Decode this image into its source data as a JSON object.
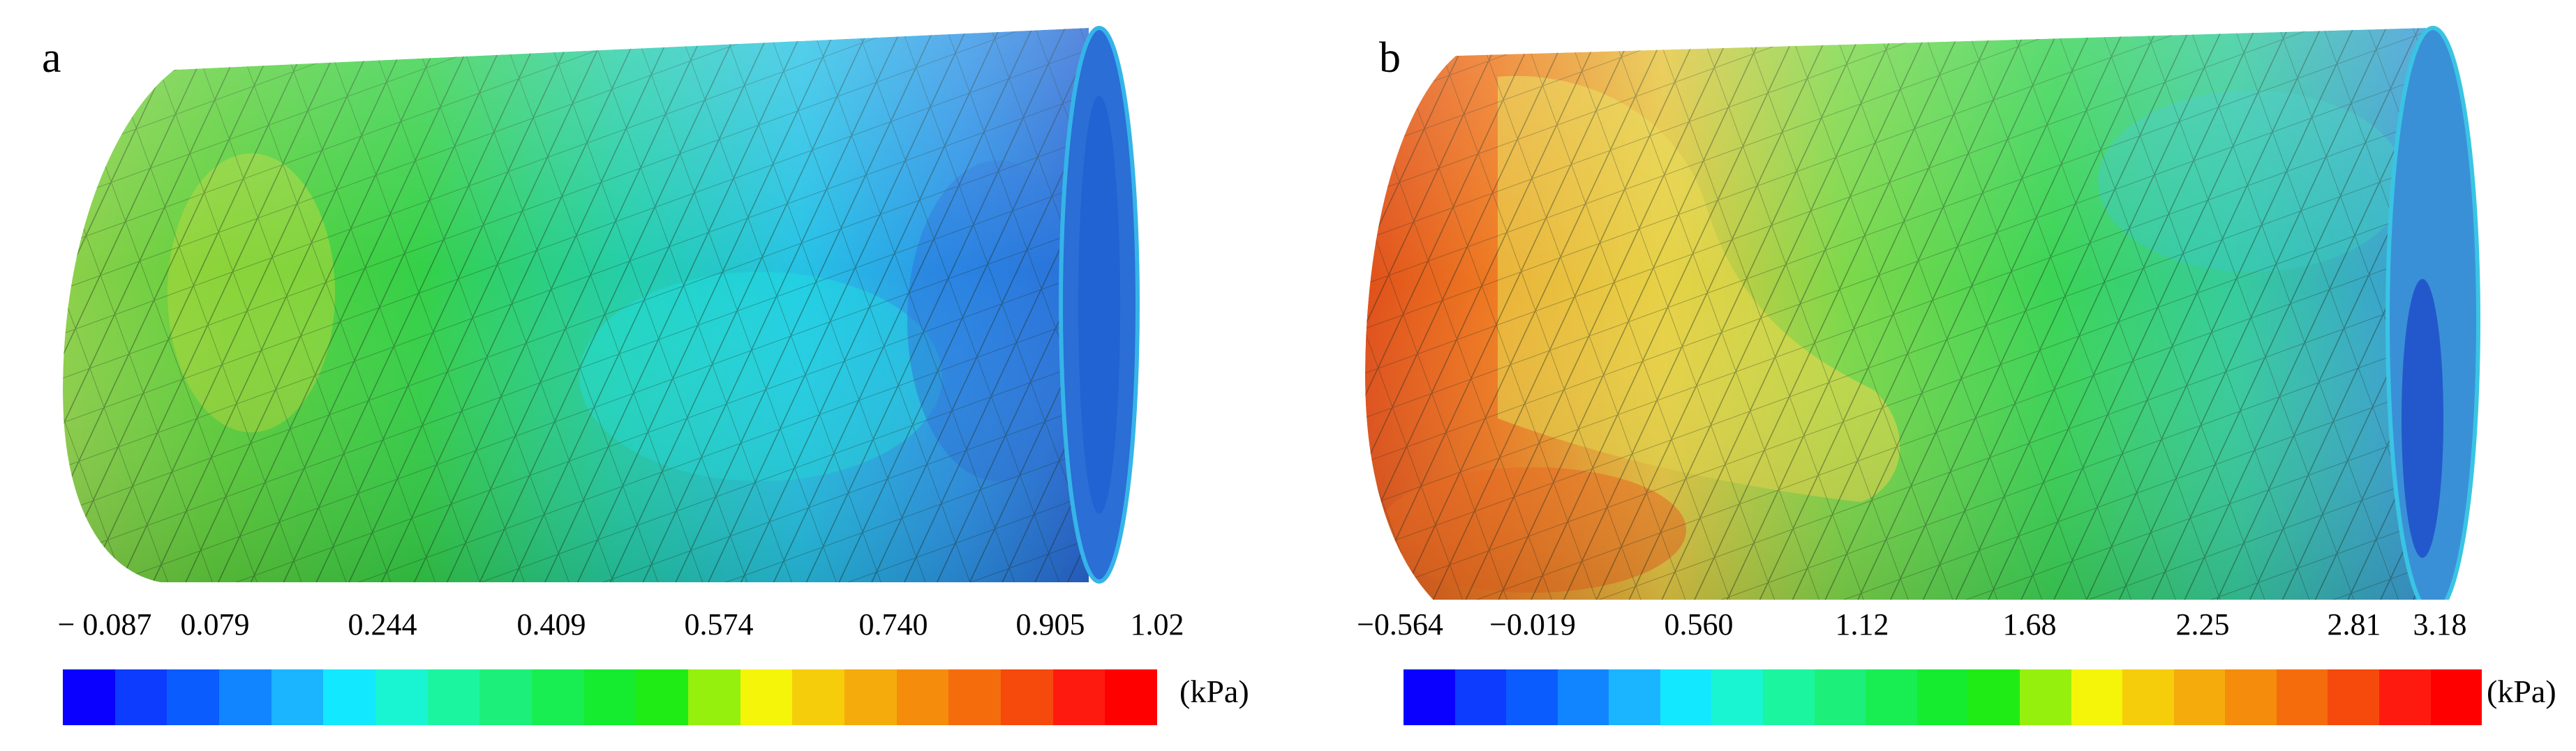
{
  "panels": [
    {
      "letter": "a",
      "unit": "(kPa)",
      "scale_labels": [
        "− 0.087",
        "0.079",
        "0.244",
        "0.409",
        "0.574",
        "0.740",
        "0.905",
        "1.02"
      ]
    },
    {
      "letter": "b",
      "unit": "(kPa)",
      "scale_labels": [
        "−0.564",
        "−0.019",
        "0.560",
        "1.12",
        "1.68",
        "2.25",
        "2.81",
        "3.18"
      ]
    }
  ],
  "colorbar_colors": [
    "#0a00ff",
    "#0d3cff",
    "#0a5cff",
    "#1185ff",
    "#1ab4ff",
    "#12e8ff",
    "#19f5d2",
    "#1cf5a0",
    "#1cf07a",
    "#18ee52",
    "#15ec30",
    "#1fec14",
    "#95f00e",
    "#f5f50a",
    "#f5cd0a",
    "#f5ab0c",
    "#f58c0c",
    "#f56c0c",
    "#f54a0c",
    "#ff1a10",
    "#ff0000"
  ],
  "surface_colors": {
    "a": [
      "#7fd24a",
      "#5fd03c",
      "#35d04a",
      "#2cd27a",
      "#22ccb8",
      "#25c0e6",
      "#2f9ce8",
      "#2a70d8"
    ],
    "b": [
      "#e05a1c",
      "#f08a22",
      "#e8d24a",
      "#8ed84a",
      "#3fd452",
      "#36d28a",
      "#3cbcd4",
      "#2f7ad8"
    ]
  }
}
